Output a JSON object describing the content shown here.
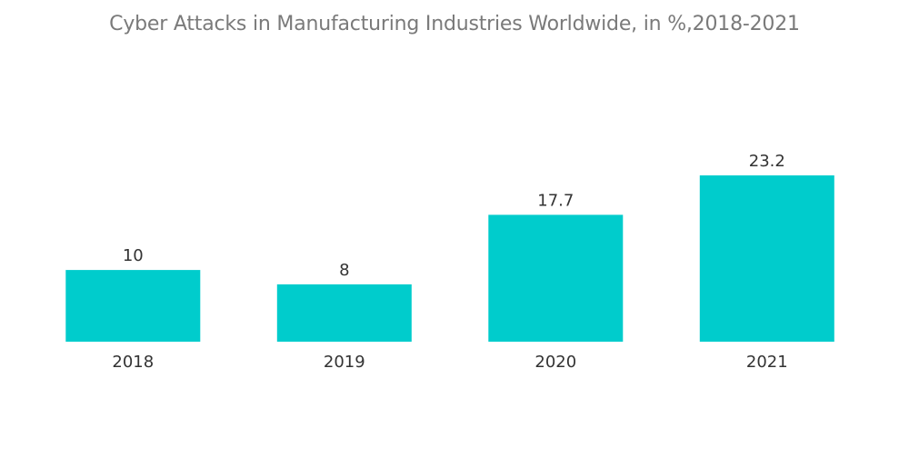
{
  "chart_data": {
    "type": "bar",
    "title": "Cyber Attacks in Manufacturing Industries Worldwide, in %,2018-2021",
    "categories": [
      "2018",
      "2019",
      "2020",
      "2021"
    ],
    "values": [
      10,
      8,
      17.7,
      23.2
    ],
    "value_labels": [
      "10",
      "8",
      "17.7",
      "23.2"
    ],
    "xlabel": "",
    "ylabel": "",
    "ylim": [
      0,
      23.2
    ],
    "grid": false,
    "legend": "none",
    "bar_color": "#00cccc"
  }
}
